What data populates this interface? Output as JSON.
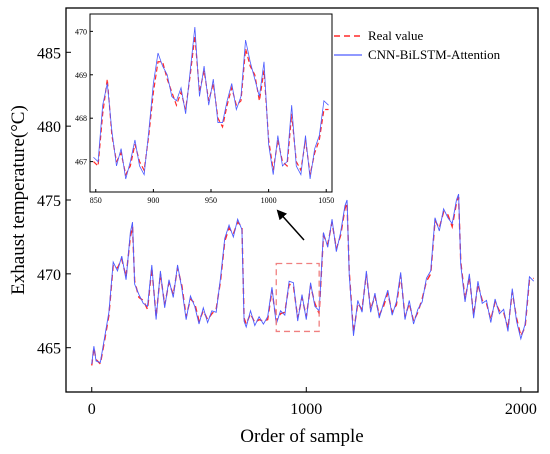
{
  "chart_data": [
    {
      "id": "main",
      "type": "line",
      "xlabel": "Order of sample",
      "ylabel": "Exhaust temperature(°C)",
      "xlim": [
        -120,
        2080
      ],
      "ylim": [
        462,
        488
      ],
      "x_ticks": [
        0,
        1000,
        2000
      ],
      "y_ticks": [
        465,
        470,
        475,
        480,
        485
      ],
      "x_tick_labels": [
        "0",
        "1000",
        "2000"
      ],
      "y_tick_labels": [
        "465",
        "470",
        "475",
        "480",
        "485"
      ],
      "legend": {
        "placement": "top-right"
      },
      "colors": {
        "real": "#ff2a2a",
        "pred": "#4d5cff"
      },
      "series": [
        {
          "name": "Real value",
          "style": "dashed",
          "x": [
            0,
            10,
            20,
            40,
            60,
            80,
            100,
            120,
            140,
            160,
            180,
            190,
            200,
            220,
            240,
            260,
            280,
            300,
            320,
            340,
            360,
            380,
            400,
            420,
            440,
            460,
            480,
            500,
            520,
            540,
            560,
            580,
            600,
            620,
            640,
            660,
            680,
            700,
            710,
            720,
            740,
            760,
            780,
            800,
            820,
            840,
            860,
            880,
            900,
            920,
            940,
            960,
            980,
            1000,
            1020,
            1040,
            1060,
            1080,
            1100,
            1120,
            1140,
            1160,
            1180,
            1190,
            1200,
            1220,
            1240,
            1260,
            1280,
            1300,
            1320,
            1340,
            1360,
            1380,
            1400,
            1420,
            1440,
            1460,
            1480,
            1500,
            1520,
            1540,
            1560,
            1580,
            1600,
            1620,
            1640,
            1660,
            1680,
            1700,
            1710,
            1720,
            1740,
            1760,
            1780,
            1800,
            1820,
            1840,
            1860,
            1880,
            1900,
            1920,
            1940,
            1960,
            1980,
            2000,
            2020,
            2040,
            2060
          ],
          "y": [
            463.8,
            465.0,
            464.2,
            463.9,
            465.5,
            467.2,
            470.6,
            470.4,
            471.0,
            469.8,
            472.5,
            473.2,
            469.5,
            468.4,
            468.2,
            467.6,
            470.4,
            467.1,
            470.0,
            467.9,
            469.4,
            468.6,
            470.4,
            469.2,
            467.1,
            468.3,
            468.0,
            466.8,
            467.5,
            466.9,
            467.3,
            467.6,
            469.5,
            472.2,
            473.1,
            472.7,
            473.5,
            473.2,
            467.0,
            466.6,
            467.3,
            466.7,
            466.9,
            466.8,
            466.9,
            468.9,
            466.8,
            467.3,
            467.4,
            469.3,
            469.2,
            467.0,
            468.4,
            467.1,
            469.2,
            468.0,
            467.3,
            472.6,
            472.0,
            473.5,
            471.7,
            472.6,
            474.4,
            474.8,
            470.2,
            466.0,
            468.0,
            467.6,
            470.0,
            467.6,
            468.5,
            467.2,
            467.8,
            468.7,
            467.4,
            467.9,
            469.9,
            467.1,
            468.0,
            466.8,
            467.4,
            468.3,
            469.5,
            470.0,
            473.6,
            473.1,
            474.2,
            474.0,
            473.2,
            474.8,
            475.2,
            470.8,
            468.3,
            469.8,
            467.2,
            469.3,
            468.2,
            468.0,
            466.9,
            468.1,
            467.5,
            467.4,
            466.3,
            468.8,
            467.0,
            465.8,
            466.4,
            469.6,
            469.7
          ]
        },
        {
          "name": "CNN-BiLSTM-Attention",
          "style": "solid",
          "x": [
            0,
            10,
            20,
            40,
            60,
            80,
            100,
            120,
            140,
            160,
            180,
            190,
            200,
            220,
            240,
            260,
            280,
            300,
            320,
            340,
            360,
            380,
            400,
            420,
            440,
            460,
            480,
            500,
            520,
            540,
            560,
            580,
            600,
            620,
            640,
            660,
            680,
            700,
            710,
            720,
            740,
            760,
            780,
            800,
            820,
            840,
            860,
            880,
            900,
            920,
            940,
            960,
            980,
            1000,
            1020,
            1040,
            1060,
            1080,
            1100,
            1120,
            1140,
            1160,
            1180,
            1190,
            1200,
            1220,
            1240,
            1260,
            1280,
            1300,
            1320,
            1340,
            1360,
            1380,
            1400,
            1420,
            1440,
            1460,
            1480,
            1500,
            1520,
            1540,
            1560,
            1580,
            1600,
            1620,
            1640,
            1660,
            1680,
            1700,
            1710,
            1720,
            1740,
            1760,
            1780,
            1800,
            1820,
            1840,
            1860,
            1880,
            1900,
            1920,
            1940,
            1960,
            1980,
            2000,
            2020,
            2040,
            2060
          ],
          "y": [
            463.9,
            465.1,
            464.1,
            464.0,
            465.7,
            467.4,
            470.8,
            470.2,
            471.2,
            469.6,
            472.8,
            473.5,
            469.3,
            468.6,
            468.0,
            467.8,
            470.6,
            466.9,
            470.2,
            467.7,
            469.6,
            468.4,
            470.6,
            469.0,
            466.9,
            468.5,
            467.8,
            466.6,
            467.7,
            466.7,
            467.5,
            467.4,
            469.7,
            472.4,
            473.3,
            472.5,
            473.7,
            473.0,
            466.8,
            466.4,
            467.5,
            466.5,
            467.1,
            466.6,
            467.1,
            469.1,
            466.6,
            467.5,
            467.2,
            469.5,
            469.4,
            466.8,
            468.6,
            466.9,
            469.4,
            467.8,
            467.5,
            472.8,
            471.8,
            473.7,
            471.5,
            472.8,
            474.6,
            475.0,
            470.0,
            465.8,
            468.2,
            467.4,
            470.2,
            467.4,
            468.7,
            467.0,
            468.0,
            468.9,
            467.2,
            468.1,
            470.1,
            466.9,
            468.2,
            466.6,
            467.6,
            468.1,
            469.7,
            470.2,
            473.8,
            472.9,
            474.4,
            473.8,
            473.4,
            475.0,
            475.4,
            470.6,
            468.1,
            470.0,
            467.0,
            469.5,
            468.0,
            468.2,
            466.7,
            468.3,
            467.3,
            467.6,
            466.1,
            469.0,
            466.8,
            465.6,
            466.6,
            469.8,
            469.5
          ]
        }
      ],
      "zoom_box": {
        "x": [
          860,
          1060
        ],
        "y": [
          466.1,
          470.7
        ]
      }
    },
    {
      "id": "inset",
      "type": "line",
      "xlim": [
        845,
        1055
      ],
      "ylim": [
        466.3,
        470.4
      ],
      "x_ticks": [
        850,
        900,
        950,
        1000,
        1050
      ],
      "y_ticks": [
        467,
        468,
        469,
        470
      ],
      "x_tick_labels": [
        "850",
        "900",
        "950",
        "1000",
        "1050"
      ],
      "y_tick_labels": [
        "467",
        "468",
        "469",
        "470"
      ],
      "series": [
        {
          "name": "Real value",
          "style": "dashed",
          "x": [
            848,
            852,
            856,
            860,
            864,
            868,
            872,
            876,
            880,
            884,
            888,
            892,
            896,
            900,
            904,
            908,
            912,
            916,
            920,
            924,
            928,
            932,
            936,
            940,
            944,
            948,
            952,
            956,
            960,
            964,
            968,
            972,
            976,
            980,
            984,
            988,
            992,
            996,
            1000,
            1004,
            1008,
            1012,
            1016,
            1020,
            1024,
            1028,
            1032,
            1036,
            1040,
            1044,
            1048,
            1052
          ],
          "y": [
            467.0,
            466.9,
            468.1,
            468.9,
            467.6,
            467.0,
            467.2,
            466.7,
            466.9,
            467.4,
            467.0,
            466.8,
            467.6,
            468.6,
            469.3,
            469.3,
            468.9,
            468.6,
            468.3,
            468.6,
            468.2,
            469.0,
            469.9,
            468.6,
            469.1,
            468.4,
            468.8,
            468.0,
            467.8,
            468.3,
            468.7,
            468.3,
            468.4,
            469.6,
            469.2,
            469.0,
            468.4,
            469.1,
            467.5,
            466.8,
            467.5,
            467.0,
            466.9,
            468.1,
            467.0,
            466.8,
            467.5,
            466.7,
            467.2,
            467.5,
            468.2,
            468.2
          ]
        },
        {
          "name": "CNN-BiLSTM-Attention",
          "style": "solid",
          "x": [
            848,
            852,
            856,
            860,
            864,
            868,
            872,
            876,
            880,
            884,
            888,
            892,
            896,
            900,
            904,
            908,
            912,
            916,
            920,
            924,
            928,
            932,
            936,
            940,
            944,
            948,
            952,
            956,
            960,
            964,
            968,
            972,
            976,
            980,
            984,
            988,
            992,
            996,
            1000,
            1004,
            1008,
            1012,
            1016,
            1020,
            1024,
            1028,
            1032,
            1036,
            1040,
            1044,
            1048,
            1052
          ],
          "y": [
            467.1,
            467.0,
            468.3,
            468.8,
            467.7,
            466.9,
            467.3,
            466.6,
            467.0,
            467.5,
            466.9,
            466.7,
            467.7,
            468.8,
            469.5,
            469.2,
            469.0,
            468.5,
            468.4,
            468.7,
            468.1,
            469.1,
            470.1,
            468.5,
            469.2,
            468.3,
            468.9,
            467.9,
            467.9,
            468.4,
            468.8,
            468.2,
            468.5,
            469.8,
            469.3,
            468.9,
            468.5,
            469.3,
            467.4,
            466.7,
            467.6,
            466.9,
            467.0,
            468.3,
            466.9,
            466.7,
            467.6,
            466.6,
            467.3,
            467.6,
            468.4,
            468.3
          ]
        }
      ]
    }
  ]
}
